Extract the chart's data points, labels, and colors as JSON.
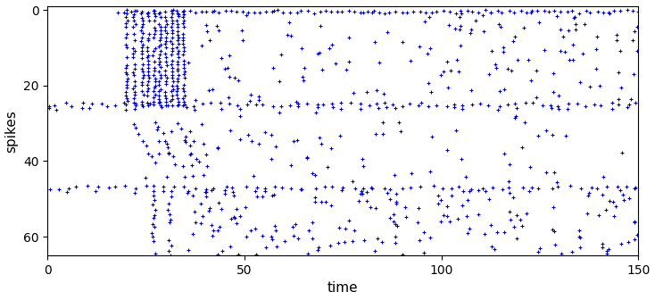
{
  "title": "",
  "xlabel": "time",
  "ylabel": "spikes",
  "xlim": [
    0,
    150
  ],
  "ylim": [
    65,
    -1
  ],
  "dot_color": "#0000CC",
  "background_color": "#FFFFFF",
  "seed": 7
}
